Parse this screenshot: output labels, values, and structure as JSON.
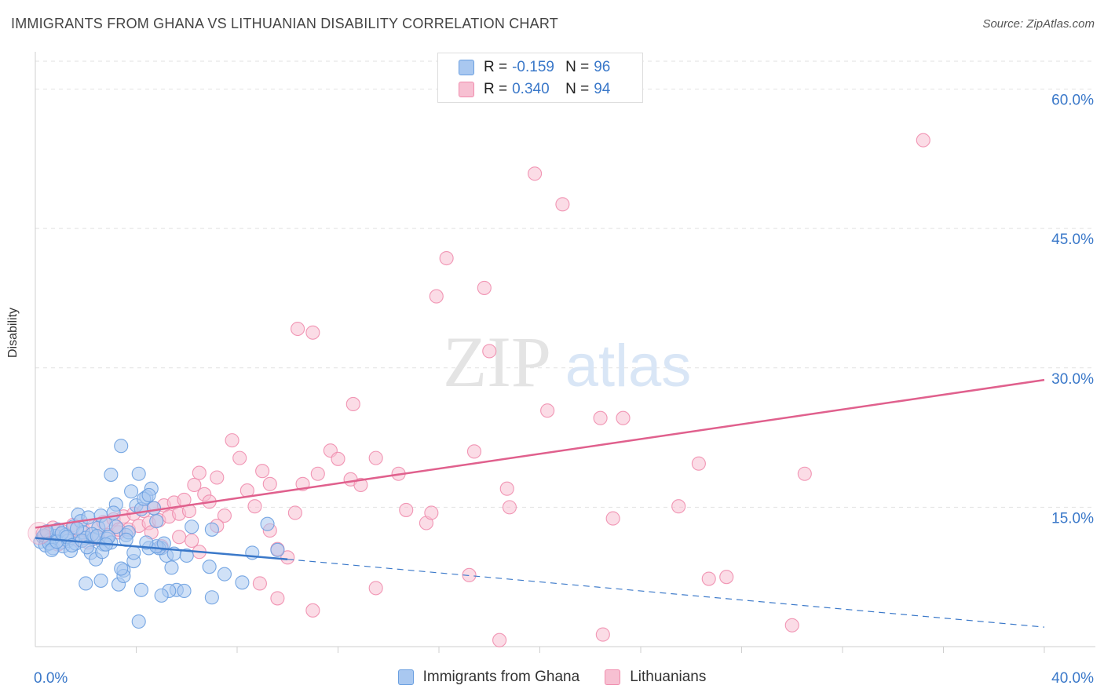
{
  "header": {
    "title": "IMMIGRANTS FROM GHANA VS LITHUANIAN DISABILITY CORRELATION CHART",
    "source": "Source: ZipAtlas.com"
  },
  "watermark": {
    "part1": "ZIP",
    "part2": "atlas"
  },
  "legend": {
    "rows": [
      {
        "r_label": "R =",
        "r_value": "-0.159",
        "n_label": "N =",
        "n_value": "96"
      },
      {
        "r_label": "R =",
        "r_value": "0.340",
        "n_label": "N =",
        "n_value": "94"
      }
    ]
  },
  "chart_data": {
    "type": "scatter",
    "title": "IMMIGRANTS FROM GHANA VS LITHUANIAN DISABILITY CORRELATION CHART",
    "xlabel": "",
    "ylabel": "Disability",
    "xlim": [
      0,
      40
    ],
    "ylim": [
      0,
      63
    ],
    "x_tick_labels": [
      "0.0%",
      "40.0%"
    ],
    "y_tick_labels": [
      "15.0%",
      "30.0%",
      "45.0%",
      "60.0%"
    ],
    "y_ticks": [
      15,
      30,
      45,
      60
    ],
    "x_minor_ticks": [
      4,
      8,
      12,
      16,
      20,
      24,
      28,
      32,
      36,
      40
    ],
    "grid": true,
    "legend_position": "top-center",
    "series": [
      {
        "name": "Immigrants from Ghana",
        "color": "#6a9fe0",
        "fill": "#a9c8f0",
        "line_color": "#3a78c9",
        "trend": {
          "solid": [
            [
              0,
              11.7
            ],
            [
              10,
              9.4
            ]
          ],
          "dashed": [
            [
              10,
              9.4
            ],
            [
              40,
              2.1
            ]
          ]
        },
        "points": [
          [
            0.2,
            11.3
          ],
          [
            0.3,
            11.8
          ],
          [
            0.4,
            10.9
          ],
          [
            0.5,
            12.1
          ],
          [
            0.6,
            11.5
          ],
          [
            0.7,
            10.6
          ],
          [
            0.8,
            11.9
          ],
          [
            0.9,
            12.6
          ],
          [
            1.0,
            11.2
          ],
          [
            1.1,
            10.8
          ],
          [
            1.2,
            12.0
          ],
          [
            1.3,
            11.4
          ],
          [
            1.4,
            10.3
          ],
          [
            1.5,
            12.9
          ],
          [
            1.6,
            11.1
          ],
          [
            1.7,
            14.2
          ],
          [
            1.8,
            13.5
          ],
          [
            1.9,
            12.3
          ],
          [
            2.0,
            11.7
          ],
          [
            2.1,
            13.9
          ],
          [
            2.2,
            10.1
          ],
          [
            2.3,
            11.6
          ],
          [
            2.4,
            9.4
          ],
          [
            2.5,
            12.8
          ],
          [
            2.6,
            14.1
          ],
          [
            2.7,
            11.0
          ],
          [
            2.8,
            13.2
          ],
          [
            0.35,
            11.95
          ],
          [
            0.45,
            12.4
          ],
          [
            0.55,
            11.1
          ],
          [
            0.65,
            10.4
          ],
          [
            0.85,
            11.3
          ],
          [
            1.05,
            12.2
          ],
          [
            1.25,
            11.8
          ],
          [
            1.45,
            10.9
          ],
          [
            1.65,
            12.7
          ],
          [
            1.85,
            11.4
          ],
          [
            2.05,
            10.7
          ],
          [
            2.25,
            12.1
          ],
          [
            2.45,
            11.9
          ],
          [
            2.65,
            10.2
          ],
          [
            2.85,
            11.6
          ],
          [
            3.0,
            18.5
          ],
          [
            3.2,
            15.3
          ],
          [
            3.4,
            21.6
          ],
          [
            3.6,
            12.0
          ],
          [
            3.8,
            16.7
          ],
          [
            4.0,
            15.2
          ],
          [
            4.2,
            14.8
          ],
          [
            4.4,
            16.1
          ],
          [
            4.6,
            17.0
          ],
          [
            4.8,
            13.5
          ],
          [
            5.0,
            10.6
          ],
          [
            5.2,
            9.8
          ],
          [
            5.4,
            8.5
          ],
          [
            5.6,
            6.1
          ],
          [
            4.1,
            18.6
          ],
          [
            4.3,
            15.9
          ],
          [
            4.5,
            16.3
          ],
          [
            4.7,
            14.9
          ],
          [
            3.5,
            8.2
          ],
          [
            3.3,
            6.7
          ],
          [
            3.9,
            9.2
          ],
          [
            4.2,
            6.1
          ],
          [
            4.9,
            10.6
          ],
          [
            5.3,
            6.0
          ],
          [
            5.0,
            5.5
          ],
          [
            5.9,
            6.0
          ],
          [
            4.1,
            2.7
          ],
          [
            3.5,
            7.6
          ],
          [
            2.0,
            6.8
          ],
          [
            2.6,
            7.1
          ],
          [
            3.0,
            11.2
          ],
          [
            3.4,
            8.4
          ],
          [
            3.7,
            12.3
          ],
          [
            3.9,
            10.1
          ],
          [
            4.5,
            10.6
          ],
          [
            4.8,
            10.8
          ],
          [
            5.1,
            11.1
          ],
          [
            5.5,
            10.0
          ],
          [
            6.0,
            9.8
          ],
          [
            6.2,
            12.9
          ],
          [
            7.0,
            12.6
          ],
          [
            7.5,
            7.8
          ],
          [
            7.0,
            5.3
          ],
          [
            8.2,
            6.9
          ],
          [
            8.6,
            10.1
          ],
          [
            9.2,
            13.2
          ],
          [
            9.6,
            10.4
          ],
          [
            6.9,
            8.6
          ],
          [
            3.2,
            12.9
          ],
          [
            2.9,
            11.8
          ],
          [
            3.6,
            11.5
          ],
          [
            4.4,
            11.2
          ],
          [
            3.1,
            14.4
          ],
          [
            2.8,
            11.0
          ]
        ]
      },
      {
        "name": "Lithuanians",
        "color": "#f08cad",
        "fill": "#f7c0d2",
        "line_color": "#e0608d",
        "trend": {
          "solid": [
            [
              0,
              12.8
            ],
            [
              40,
              28.7
            ]
          ]
        },
        "points": [
          [
            0.3,
            12.2
          ],
          [
            0.5,
            11.5
          ],
          [
            0.7,
            12.8
          ],
          [
            0.9,
            11.0
          ],
          [
            1.1,
            12.4
          ],
          [
            1.3,
            11.8
          ],
          [
            1.5,
            13.1
          ],
          [
            1.7,
            11.5
          ],
          [
            1.9,
            12.6
          ],
          [
            2.1,
            11.2
          ],
          [
            2.3,
            12.9
          ],
          [
            2.5,
            11.7
          ],
          [
            2.7,
            13.4
          ],
          [
            2.9,
            12.0
          ],
          [
            3.1,
            13.7
          ],
          [
            3.3,
            12.3
          ],
          [
            3.5,
            14.0
          ],
          [
            3.7,
            12.6
          ],
          [
            3.9,
            14.3
          ],
          [
            4.1,
            13.0
          ],
          [
            4.3,
            14.6
          ],
          [
            4.5,
            13.3
          ],
          [
            4.7,
            14.9
          ],
          [
            4.9,
            13.6
          ],
          [
            5.1,
            15.2
          ],
          [
            5.3,
            14.0
          ],
          [
            5.5,
            15.5
          ],
          [
            5.7,
            14.3
          ],
          [
            5.9,
            15.8
          ],
          [
            6.1,
            14.6
          ],
          [
            6.3,
            17.4
          ],
          [
            6.5,
            18.7
          ],
          [
            6.7,
            16.4
          ],
          [
            6.9,
            15.6
          ],
          [
            7.2,
            18.2
          ],
          [
            7.5,
            14.1
          ],
          [
            7.8,
            22.2
          ],
          [
            8.1,
            20.3
          ],
          [
            8.4,
            16.8
          ],
          [
            8.7,
            15.1
          ],
          [
            9.0,
            18.9
          ],
          [
            9.3,
            12.5
          ],
          [
            9.6,
            10.5
          ],
          [
            10.0,
            9.6
          ],
          [
            10.4,
            34.2
          ],
          [
            11.0,
            33.8
          ],
          [
            10.6,
            17.5
          ],
          [
            11.2,
            18.6
          ],
          [
            11.7,
            21.1
          ],
          [
            12.0,
            20.2
          ],
          [
            12.5,
            18.0
          ],
          [
            12.9,
            17.4
          ],
          [
            12.6,
            26.1
          ],
          [
            13.5,
            20.3
          ],
          [
            14.4,
            18.6
          ],
          [
            14.7,
            14.7
          ],
          [
            15.5,
            13.3
          ],
          [
            15.7,
            14.4
          ],
          [
            15.9,
            37.7
          ],
          [
            16.3,
            41.8
          ],
          [
            17.4,
            21.0
          ],
          [
            17.8,
            38.6
          ],
          [
            18.0,
            31.8
          ],
          [
            18.7,
            17.0
          ],
          [
            18.8,
            15.0
          ],
          [
            19.8,
            50.9
          ],
          [
            20.9,
            47.6
          ],
          [
            20.3,
            25.4
          ],
          [
            22.4,
            24.6
          ],
          [
            22.9,
            13.8
          ],
          [
            23.3,
            24.6
          ],
          [
            25.5,
            15.1
          ],
          [
            26.3,
            19.7
          ],
          [
            26.7,
            7.3
          ],
          [
            27.4,
            7.5
          ],
          [
            30.0,
            2.3
          ],
          [
            30.5,
            18.6
          ],
          [
            35.2,
            54.5
          ],
          [
            17.2,
            7.7
          ],
          [
            13.5,
            6.3
          ],
          [
            11.0,
            3.9
          ],
          [
            9.6,
            5.2
          ],
          [
            8.9,
            6.8
          ],
          [
            7.2,
            13.0
          ],
          [
            6.5,
            10.2
          ],
          [
            5.7,
            11.8
          ],
          [
            5.0,
            10.8
          ],
          [
            4.6,
            12.3
          ],
          [
            3.3,
            12.6
          ],
          [
            18.4,
            0.7
          ],
          [
            22.5,
            1.3
          ],
          [
            9.3,
            17.5
          ],
          [
            10.3,
            14.4
          ],
          [
            6.2,
            11.4
          ]
        ]
      }
    ]
  }
}
